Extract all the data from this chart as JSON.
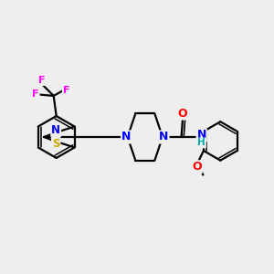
{
  "background_color": "#eeeeee",
  "atom_colors": {
    "N": "#0000ff",
    "O": "#ff0000",
    "S": "#ccaa00",
    "F": "#ff00ff",
    "C": "#000000",
    "H": "#00aaaa"
  },
  "bond_color": "#000000",
  "bond_width": 1.6,
  "figsize": [
    3.0,
    3.0
  ],
  "dpi": 100
}
